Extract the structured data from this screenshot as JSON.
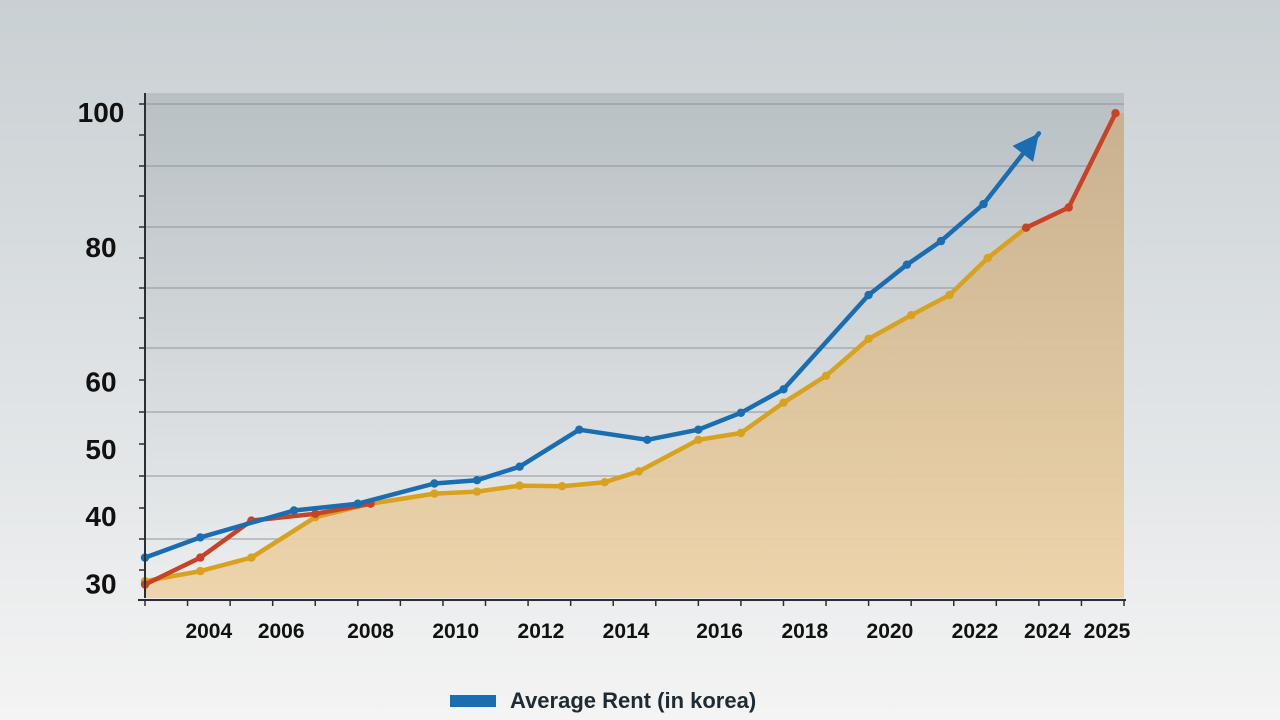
{
  "chart_data": {
    "type": "line",
    "title": "",
    "xlabel": "",
    "ylabel": "",
    "x_tick_labels": [
      "2004",
      "2006",
      "2008",
      "2010",
      "2012",
      "2014",
      "2016",
      "2018",
      "2020",
      "2022",
      "2024",
      "2025"
    ],
    "x_tick_years": [
      2004.5,
      2006.2,
      2008.3,
      2010.3,
      2012.3,
      2014.3,
      2016.5,
      2018.5,
      2020.5,
      2022.5,
      2024.2,
      2025.6
    ],
    "y_tick_labels": [
      "30",
      "40",
      "50",
      "60",
      "80",
      "100"
    ],
    "y_tick_values": [
      30,
      40,
      50,
      60,
      80,
      100
    ],
    "xlim": [
      2003,
      2026
    ],
    "ylim": [
      28,
      103
    ],
    "grid": true,
    "legend_position": "bottom-center",
    "series": [
      {
        "name": "Average Rent (in korea)",
        "color": "#1a6db0",
        "arrow_end": true,
        "points": [
          [
            2003.0,
            34
          ],
          [
            2004.3,
            37
          ],
          [
            2006.5,
            41
          ],
          [
            2008.0,
            42
          ],
          [
            2009.8,
            45
          ],
          [
            2010.8,
            45.5
          ],
          [
            2011.8,
            47.5
          ],
          [
            2013.2,
            53
          ],
          [
            2014.8,
            51.5
          ],
          [
            2016.0,
            53
          ],
          [
            2017.0,
            55.5
          ],
          [
            2018.0,
            59
          ],
          [
            2020.0,
            73
          ],
          [
            2020.9,
            77.5
          ],
          [
            2021.7,
            81
          ],
          [
            2022.7,
            86.5
          ],
          [
            2024.0,
            97
          ]
        ]
      },
      {
        "name": "gold-line",
        "color": "#d8a21f",
        "fill": "#e7c48d",
        "points": [
          [
            2003.0,
            30.5
          ],
          [
            2004.3,
            32
          ],
          [
            2005.5,
            34
          ],
          [
            2007.0,
            40
          ],
          [
            2008.3,
            42
          ],
          [
            2009.8,
            43.5
          ],
          [
            2010.8,
            43.8
          ],
          [
            2011.8,
            44.7
          ],
          [
            2012.8,
            44.6
          ],
          [
            2013.8,
            45.2
          ],
          [
            2014.6,
            46.8
          ],
          [
            2016.0,
            51.5
          ],
          [
            2017.0,
            52.5
          ],
          [
            2018.0,
            57
          ],
          [
            2019.0,
            61
          ],
          [
            2020.0,
            66.5
          ],
          [
            2021.0,
            70
          ],
          [
            2021.9,
            73
          ],
          [
            2022.8,
            78.5
          ],
          [
            2023.7,
            83
          ]
        ]
      },
      {
        "name": "red-line",
        "color": "#c84226",
        "points": [
          [
            2003.0,
            30
          ],
          [
            2004.3,
            34
          ],
          [
            2005.5,
            39.5
          ],
          [
            2007.0,
            40.5
          ],
          [
            2008.3,
            42
          ]
        ]
      },
      {
        "name": "red-line-upper",
        "color": "#c84226",
        "points": [
          [
            2023.7,
            83
          ],
          [
            2024.7,
            86
          ],
          [
            2025.8,
            100
          ]
        ]
      }
    ]
  },
  "legend": {
    "label": "Average Rent (in korea)",
    "swatch_color": "#1a6db0"
  }
}
